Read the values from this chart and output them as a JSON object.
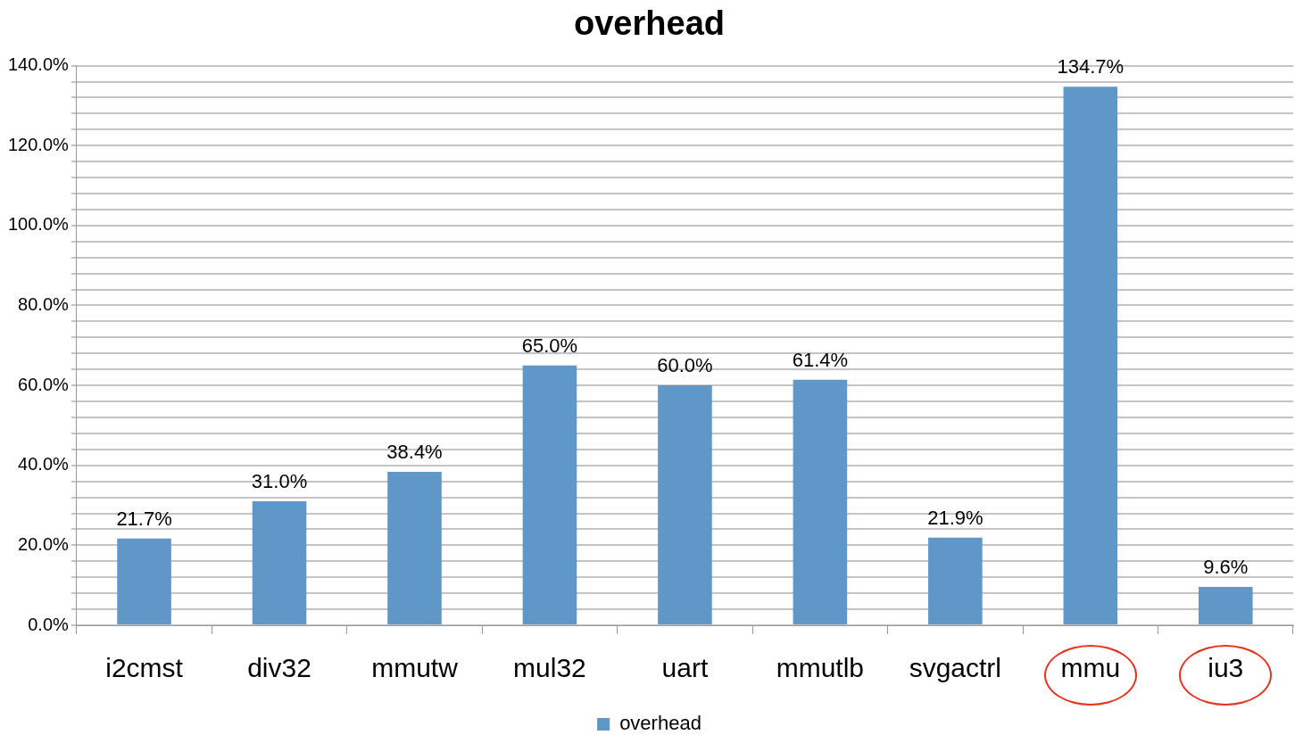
{
  "chart_data": {
    "type": "bar",
    "title": "overhead",
    "categories": [
      "i2cmst",
      "div32",
      "mmutw",
      "mul32",
      "uart",
      "mmutlb",
      "svgactrl",
      "mmu",
      "iu3"
    ],
    "series": [
      {
        "name": "overhead",
        "color": "#6097c9",
        "values": [
          21.7,
          31.0,
          38.4,
          65.0,
          60.0,
          61.4,
          21.9,
          134.7,
          9.6
        ],
        "value_labels": [
          "21.7%",
          "31.0%",
          "38.4%",
          "65.0%",
          "60.0%",
          "61.4%",
          "21.9%",
          "134.7%",
          "9.6%"
        ]
      }
    ],
    "ylim": [
      0,
      140
    ],
    "yticks": [
      {
        "value": 0,
        "label": "0.0%"
      },
      {
        "value": 4,
        "label": null
      },
      {
        "value": 8,
        "label": null
      },
      {
        "value": 12,
        "label": null
      },
      {
        "value": 16,
        "label": null
      },
      {
        "value": 20,
        "label": "20.0%"
      },
      {
        "value": 24,
        "label": null
      },
      {
        "value": 28,
        "label": null
      },
      {
        "value": 32,
        "label": null
      },
      {
        "value": 36,
        "label": null
      },
      {
        "value": 40,
        "label": "40.0%"
      },
      {
        "value": 44,
        "label": null
      },
      {
        "value": 48,
        "label": null
      },
      {
        "value": 52,
        "label": null
      },
      {
        "value": 56,
        "label": null
      },
      {
        "value": 60,
        "label": "60.0%"
      },
      {
        "value": 64,
        "label": null
      },
      {
        "value": 68,
        "label": null
      },
      {
        "value": 72,
        "label": null
      },
      {
        "value": 76,
        "label": null
      },
      {
        "value": 80,
        "label": "80.0%"
      },
      {
        "value": 84,
        "label": null
      },
      {
        "value": 88,
        "label": null
      },
      {
        "value": 92,
        "label": null
      },
      {
        "value": 96,
        "label": null
      },
      {
        "value": 100,
        "label": "100.0%"
      },
      {
        "value": 104,
        "label": null
      },
      {
        "value": 108,
        "label": null
      },
      {
        "value": 112,
        "label": null
      },
      {
        "value": 116,
        "label": null
      },
      {
        "value": 120,
        "label": "120.0%"
      },
      {
        "value": 124,
        "label": null
      },
      {
        "value": 128,
        "label": null
      },
      {
        "value": 132,
        "label": null
      },
      {
        "value": 136,
        "label": null
      },
      {
        "value": 140,
        "label": "140.0%"
      }
    ],
    "grid": "y",
    "legend": "bottom"
  }
}
